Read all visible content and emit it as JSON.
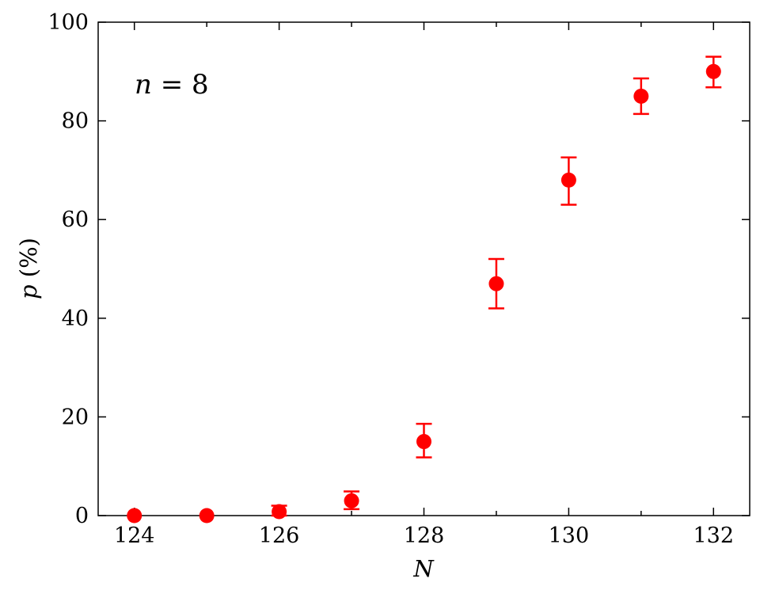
{
  "chart_data": {
    "type": "scatter",
    "xlabel": "N",
    "ylabel_var": "p",
    "ylabel_unit": " (%)",
    "xlim": [
      123.5,
      132.5
    ],
    "ylim": [
      0,
      100
    ],
    "x_ticks": [
      124,
      126,
      128,
      130,
      132
    ],
    "x_minor_ticks": [
      125,
      127,
      129,
      131
    ],
    "y_ticks": [
      0,
      20,
      40,
      60,
      80,
      100
    ],
    "grid": false,
    "annotation": {
      "var": "n",
      "rest": " = 8"
    },
    "marker_color": "#ff0000",
    "series": [
      {
        "x": [
          124,
          125,
          126,
          127,
          128,
          129,
          130,
          131,
          132
        ],
        "y": [
          0,
          0,
          0.8,
          3,
          15,
          47,
          68,
          85,
          90
        ],
        "err_low": [
          0,
          0,
          0,
          1.3,
          11.8,
          42,
          63,
          81.4,
          86.8
        ],
        "err_high": [
          0,
          0,
          2,
          4.9,
          18.6,
          52,
          72.6,
          88.6,
          93
        ]
      }
    ]
  }
}
